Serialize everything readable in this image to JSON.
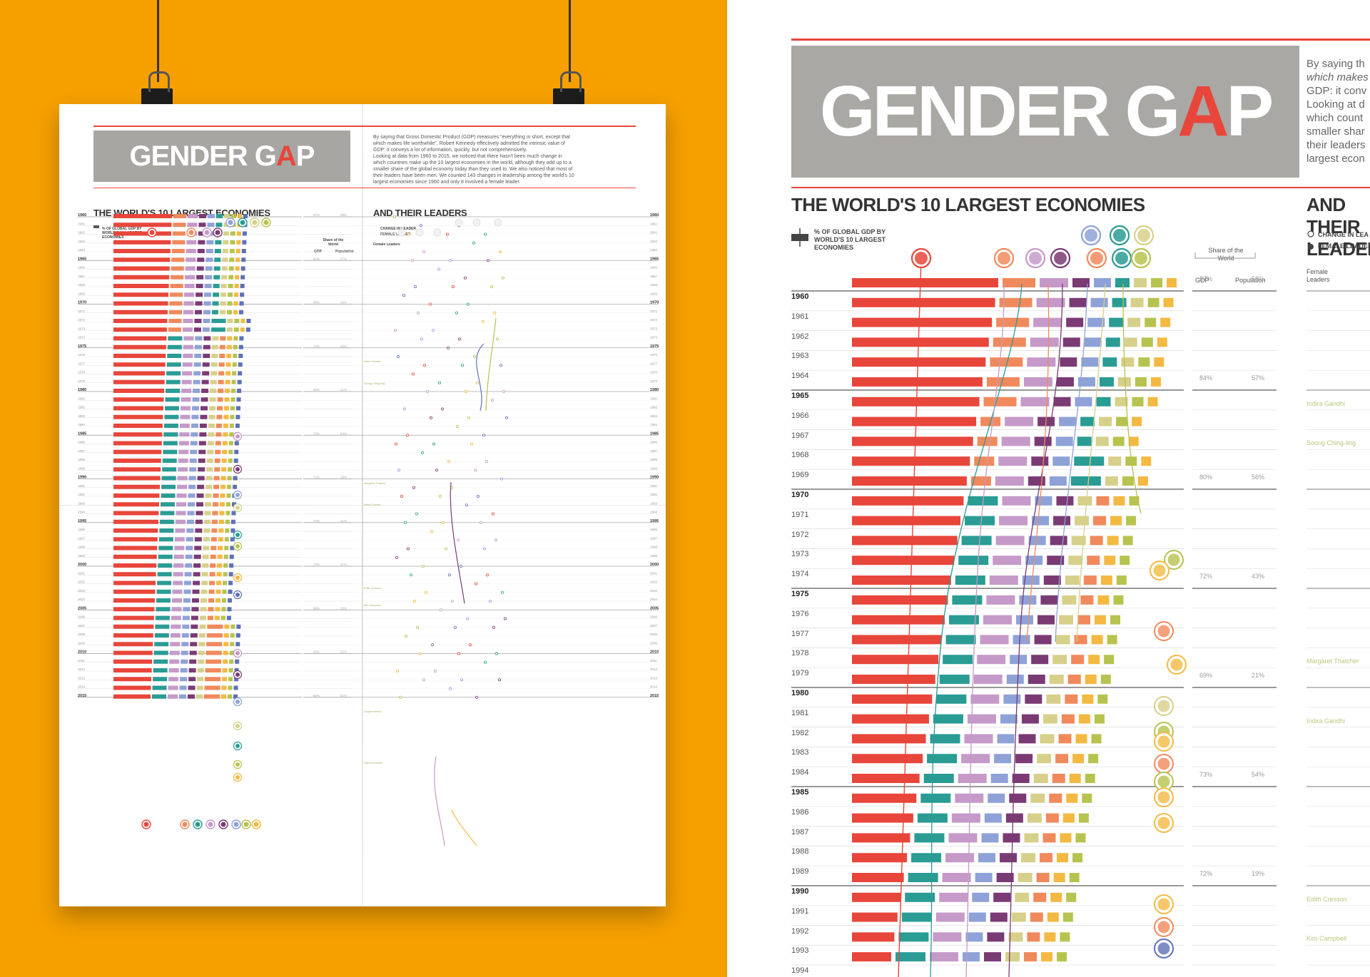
{
  "poster": {
    "title_prefix": "GENDER G",
    "title_a": "A",
    "title_suffix": "P",
    "heading_left": "THE WORLD'S 10 LARGEST ECONOMIES",
    "heading_right": "AND THEIR LEADERS",
    "legend_gdp": "% OF GLOBAL GDP BY WORLD'S 10 LARGEST ECONOMIES",
    "legend_change": "CHANGE IN LEADER",
    "legend_female": "FEMALE LEADER",
    "female_leaders_label": "Female Leaders",
    "share_label": "Share of the World",
    "gdp_label": "GDP",
    "population_label": "Population",
    "intro_lines": [
      "By saying that Gross Domestic Product (GDP) measures \"everything in short, except that",
      "which makes life worthwhile\", Robert Kennedy effectively admitted the intrinsic value of",
      "GDP: it conveys a lot of information, quickly, but not comprehensively.",
      "Looking at data from 1960 to 2015, we noticed that there hasn't been much change in",
      "which countries make up the 10 largest economies in the world, although they add up to a",
      "smaller share of the global economy today than they used to. We also noticed that most of",
      "their leaders have been men. We counted 143 changes in leadership among the world's 10",
      "largest economies since 1960 and only 8 involved a female leader."
    ],
    "years": [
      "1960",
      "1961",
      "1962",
      "1963",
      "1964",
      "1965",
      "1966",
      "1967",
      "1968",
      "1969",
      "1970",
      "1971",
      "1972",
      "1973",
      "1974",
      "1975",
      "1976",
      "1977",
      "1978",
      "1979",
      "1980",
      "1981",
      "1982",
      "1983",
      "1984",
      "1985",
      "1986",
      "1987",
      "1988",
      "1989",
      "1990",
      "1991",
      "1992",
      "1993",
      "1994",
      "1995",
      "1996",
      "1997",
      "1998",
      "1999",
      "2000",
      "2001",
      "2002",
      "2003",
      "2004",
      "2005",
      "2006",
      "2007",
      "2008",
      "2009",
      "2010",
      "2011",
      "2012",
      "2013",
      "2014",
      "2015"
    ],
    "gdp_share": {
      "1960": "87%",
      "1965": "84%",
      "1970": "80%",
      "1975": "72%",
      "1980": "69%",
      "1985": "73%",
      "1990": "72%",
      "1995": "73%",
      "2000": "73%",
      "2005": "68%",
      "2010": "65%",
      "2015": "66%"
    },
    "pop_share": {
      "1960": "58%",
      "1965": "57%",
      "1970": "56%",
      "1975": "43%",
      "1980": "21%",
      "1985": "54%",
      "1990": "19%",
      "1995": "21%",
      "2000": "37%",
      "2005": "35%",
      "2010": "51%",
      "2015": "51%"
    },
    "female_leaders": [
      "Indira Gandhi",
      "Soong Ching-ling",
      "Margaret Thatcher",
      "Indira Gandhi",
      "Edith Cresson",
      "Kim Campbell",
      "Angela Merkel",
      "Dilma Rousseff"
    ],
    "note": "Note: "
  },
  "colors": {
    "orange_bg": "#f6a000",
    "accent_red": "#e8463b",
    "usa": "#e8463b",
    "china": "#f08a5d",
    "germany": "#c59ac8",
    "uk": "#7a3b74",
    "france": "#8fa2d8",
    "italy": "#d7d08a",
    "japan": "#2a9c94",
    "india": "#b7c34f",
    "brazil": "#f4b942",
    "russia": "#5e71b8",
    "hero_gray": "#a8a6a2"
  },
  "zoom": {
    "heading_left": "THE WORLD'S 10 LARGEST ECONOMIES",
    "heading_right": "AND THEIR LEADERS",
    "intro_lines": [
      "By saying th",
      "which makes",
      "GDP: it conv",
      "Looking at d",
      "which count",
      "smaller shar",
      "their leaders",
      "largest econ"
    ],
    "legend_gdp": "% OF GLOBAL GDP BY WORLD'S 10 LARGEST ECONOMIES",
    "legend_change": "CHANGE IN LEA",
    "legend_female": "FEMALE LEADERS",
    "female_leaders_label": "Female Leaders",
    "share_label": "Share of the World",
    "gdp_label": "GDP",
    "population_label": "Population",
    "years": [
      "1960",
      "1961",
      "1962",
      "1963",
      "1964",
      "1965",
      "1966",
      "1967",
      "1968",
      "1969",
      "1970",
      "1971",
      "1972",
      "1973",
      "1974",
      "1975",
      "1976",
      "1977",
      "1978",
      "1979",
      "1980",
      "1981",
      "1982",
      "1983",
      "1984",
      "1985",
      "1986",
      "1987",
      "1988",
      "1989",
      "1990",
      "1991",
      "1992",
      "1993",
      "1994"
    ],
    "gdp_share": {
      "1960": "87%",
      "1965": "84%",
      "1970": "80%",
      "1975": "72%",
      "1980": "69%",
      "1985": "73%",
      "1990": "72%"
    },
    "pop_share": {
      "1960": "58%",
      "1965": "57%",
      "1970": "56%",
      "1975": "43%",
      "1980": "21%",
      "1985": "54%",
      "1990": "19%"
    },
    "leader_names": {
      "1966": "Indira Gandhi",
      "1968": "Soong Ching-ling",
      "1979": "Margaret Thatcher",
      "1982": "Indira Gandhi",
      "1991": "Edith Cresson",
      "1993": "Kim Campbell"
    }
  },
  "chart_data": {
    "type": "bar",
    "title": "THE WORLD'S 10 LARGEST ECONOMIES",
    "xlabel": "",
    "ylabel": "",
    "categories": [
      "1960",
      "1965",
      "1970",
      "1975",
      "1980",
      "1985",
      "1990",
      "1995",
      "2000",
      "2005",
      "2010",
      "2015"
    ],
    "series": [
      {
        "name": "Share of the World GDP",
        "values": [
          87,
          84,
          80,
          72,
          69,
          73,
          72,
          73,
          73,
          68,
          65,
          66
        ]
      },
      {
        "name": "Share of the World Population",
        "values": [
          58,
          57,
          56,
          43,
          21,
          54,
          19,
          21,
          37,
          35,
          51,
          51
        ]
      }
    ]
  }
}
